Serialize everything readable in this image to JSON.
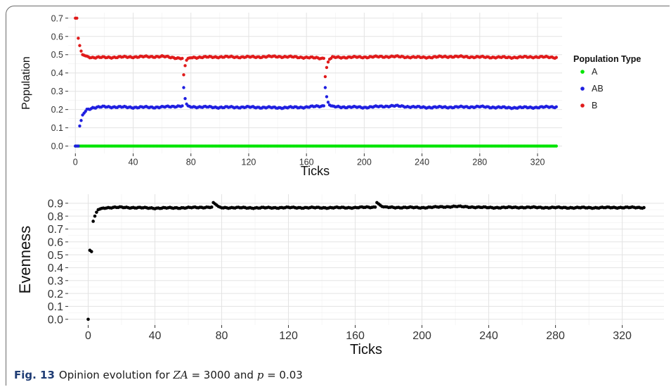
{
  "chart_data": [
    {
      "type": "scatter",
      "xlabel": "Ticks",
      "ylabel": "Population",
      "xlim": [
        -5,
        337
      ],
      "ylim": [
        -0.04,
        0.73
      ],
      "xticks": [
        0,
        40,
        80,
        120,
        160,
        200,
        240,
        280,
        320
      ],
      "yticks": [
        0.0,
        0.1,
        0.2,
        0.3,
        0.4,
        0.5,
        0.6,
        0.7
      ],
      "ytick_labels": [
        "0.0",
        "0.1",
        "0.2",
        "0.3",
        "0.4",
        "0.5",
        "0.6",
        "0.7"
      ],
      "grid": true,
      "legend": {
        "title": "Population Type",
        "placement": "right"
      },
      "series": [
        {
          "name": "A",
          "color": "#00e400",
          "x": [
            0,
            20,
            40,
            60,
            80,
            100,
            120,
            140,
            160,
            180,
            200,
            220,
            240,
            260,
            280,
            300,
            320,
            333
          ],
          "y": [
            0.0,
            0.0,
            0.0,
            0.0,
            0.0,
            0.0,
            0.0,
            0.0,
            0.0,
            0.0,
            0.0,
            0.0,
            0.0,
            0.0,
            0.0,
            0.0,
            0.0,
            0.0
          ]
        },
        {
          "name": "AB",
          "color": "#1f1fe0",
          "x": [
            0,
            1,
            2,
            3,
            4,
            5,
            8,
            12,
            20,
            40,
            60,
            74,
            75,
            76,
            77,
            78,
            80,
            100,
            120,
            140,
            160,
            172,
            173,
            174,
            175,
            176,
            178,
            200,
            220,
            240,
            260,
            280,
            300,
            320,
            333
          ],
          "y": [
            0.0,
            0.0,
            0.0,
            0.11,
            0.14,
            0.17,
            0.2,
            0.21,
            0.215,
            0.212,
            0.213,
            0.22,
            0.32,
            0.26,
            0.23,
            0.22,
            0.215,
            0.212,
            0.213,
            0.21,
            0.213,
            0.22,
            0.32,
            0.27,
            0.24,
            0.225,
            0.215,
            0.212,
            0.22,
            0.212,
            0.213,
            0.215,
            0.21,
            0.212,
            0.215
          ]
        },
        {
          "name": "B",
          "color": "#e01b1b",
          "x": [
            0,
            1,
            2,
            3,
            4,
            5,
            8,
            12,
            20,
            40,
            60,
            74,
            75,
            76,
            77,
            78,
            80,
            100,
            120,
            140,
            160,
            172,
            173,
            174,
            175,
            176,
            178,
            200,
            220,
            240,
            260,
            280,
            300,
            320,
            333
          ],
          "y": [
            0.7,
            0.7,
            0.59,
            0.55,
            0.52,
            0.5,
            0.49,
            0.485,
            0.485,
            0.488,
            0.49,
            0.48,
            0.39,
            0.44,
            0.47,
            0.48,
            0.485,
            0.488,
            0.487,
            0.49,
            0.485,
            0.48,
            0.38,
            0.43,
            0.46,
            0.475,
            0.485,
            0.487,
            0.49,
            0.485,
            0.49,
            0.487,
            0.485,
            0.488,
            0.485
          ]
        }
      ]
    },
    {
      "type": "scatter",
      "xlabel": "Ticks",
      "ylabel": "Evenness",
      "xlim": [
        -12,
        345
      ],
      "ylim": [
        -0.045,
        0.97
      ],
      "xticks": [
        0,
        40,
        80,
        120,
        160,
        200,
        240,
        280,
        320
      ],
      "yticks": [
        0.0,
        0.1,
        0.2,
        0.3,
        0.4,
        0.5,
        0.6,
        0.7,
        0.8,
        0.9
      ],
      "ytick_labels": [
        "0.0",
        "0.1",
        "0.2",
        "0.3",
        "0.4",
        "0.5",
        "0.6",
        "0.7",
        "0.8",
        "0.9"
      ],
      "grid": true,
      "series": [
        {
          "color": "#000000",
          "x": [
            0,
            1,
            2,
            3,
            4,
            5,
            6,
            8,
            10,
            20,
            40,
            60,
            74,
            75,
            76,
            77,
            78,
            79,
            80,
            100,
            120,
            140,
            160,
            172,
            173,
            174,
            175,
            176,
            178,
            200,
            220,
            240,
            260,
            280,
            300,
            320,
            333
          ],
          "y": [
            0.0,
            0.535,
            0.525,
            0.76,
            0.8,
            0.83,
            0.85,
            0.86,
            0.865,
            0.868,
            0.862,
            0.865,
            0.87,
            0.905,
            0.895,
            0.885,
            0.875,
            0.87,
            0.866,
            0.864,
            0.866,
            0.865,
            0.866,
            0.87,
            0.905,
            0.895,
            0.885,
            0.875,
            0.868,
            0.866,
            0.875,
            0.866,
            0.868,
            0.866,
            0.865,
            0.867,
            0.866
          ]
        }
      ]
    }
  ],
  "caption": {
    "label": "Fig. 13",
    "text_pre": "Opinion evolution for ",
    "za_var": "ZA",
    "za_rest": " = 3000 and ",
    "p_var": "p",
    "p_rest": " = 0.03"
  }
}
